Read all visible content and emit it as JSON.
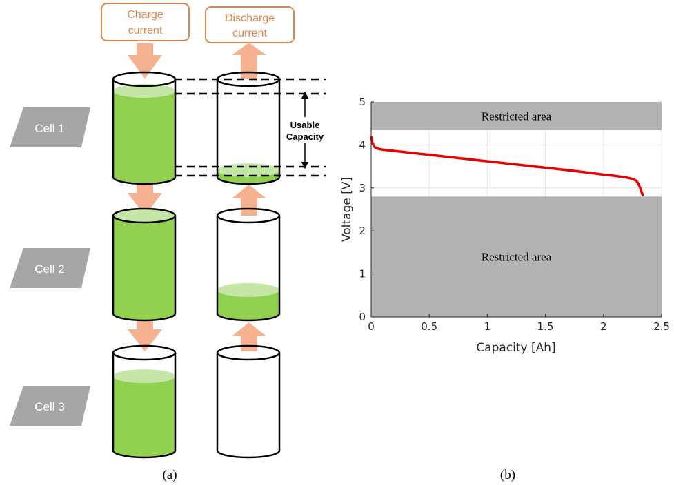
{
  "panel_a": {
    "caption": "(a)",
    "charge_box": {
      "line1": "Charge",
      "line2": "current"
    },
    "discharge_box": {
      "line1": "Discharge",
      "line2": "current"
    },
    "usable_label": {
      "line1": "Usable",
      "line2": "Capacity"
    },
    "cells": [
      {
        "label": "Cell 1",
        "charge_fill_level": 0.88,
        "discharge_fill_level": 0.07
      },
      {
        "label": "Cell 2",
        "charge_fill_level": 1.0,
        "discharge_fill_level": 0.24
      },
      {
        "label": "Cell 3",
        "charge_fill_level": 0.76,
        "discharge_fill_level": 0.0
      }
    ],
    "colors": {
      "fill": "#92d050",
      "fill_top": "#c5e6a6",
      "arrow": "#f6b190",
      "box_border": "#e2854a",
      "box_text": "#e2854a",
      "cell_label_bg": "#a6a6a6",
      "cell_label_text": "#ffffff"
    }
  },
  "panel_b": {
    "caption": "(b)",
    "xlabel": "Capacity [Ah]",
    "ylabel": "Voltage [V]",
    "xticks": [
      "0",
      "0.5",
      "1",
      "1.5",
      "2",
      "2.5"
    ],
    "yticks": [
      "0",
      "1",
      "2",
      "3",
      "4",
      "5"
    ],
    "restricted_top_label": "Restricted area",
    "restricted_bottom_label": "Restricted area"
  },
  "chart_data": {
    "type": "line",
    "xlabel": "Capacity [Ah]",
    "ylabel": "Voltage [V]",
    "xlim": [
      0,
      2.5
    ],
    "ylim": [
      0,
      5
    ],
    "grid": true,
    "restricted_regions": [
      {
        "label": "Restricted area",
        "y_from": 4.35,
        "y_to": 5.0
      },
      {
        "label": "Restricted area",
        "y_from": 0.0,
        "y_to": 2.8
      }
    ],
    "series": [
      {
        "color": "#e60000",
        "x": [
          0.0,
          0.01,
          0.03,
          0.06,
          0.1,
          0.2,
          0.4,
          0.6,
          0.8,
          1.0,
          1.2,
          1.4,
          1.6,
          1.8,
          2.0,
          2.1,
          2.2,
          2.25,
          2.28,
          2.3,
          2.32,
          2.34
        ],
        "y": [
          4.2,
          4.05,
          3.95,
          3.91,
          3.89,
          3.86,
          3.8,
          3.74,
          3.68,
          3.62,
          3.56,
          3.5,
          3.44,
          3.38,
          3.31,
          3.28,
          3.24,
          3.21,
          3.17,
          3.1,
          2.97,
          2.81
        ]
      }
    ],
    "colors": {
      "restricted": "#b3b3b3",
      "grid": "#e6e6e6"
    }
  }
}
